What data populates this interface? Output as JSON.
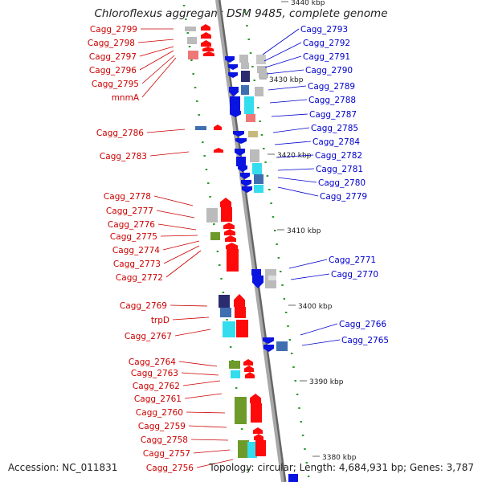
{
  "title": "Chloroflexus aggregans DSM 9485, complete genome",
  "accession": "Accession: NC_011831",
  "summary": "Topology: circular; Length: 4,684,931 bp; Genes: 3,787",
  "colors": {
    "forward": "#ff0000",
    "reverse": "#0000ff",
    "label_left": "#cc0000",
    "label_right": "#0000cc",
    "backbone": "#999999",
    "tick": "#2e9a2e"
  },
  "scale_labels": [
    "3440 kbp",
    "3430 kbp",
    "3420 kbp",
    "3410 kbp",
    "3400 kbp",
    "3390 kbp",
    "3380 kbp"
  ],
  "left_genes": [
    "Cagg_2799",
    "Cagg_2798",
    "Cagg_2797",
    "Cagg_2796",
    "Cagg_2795",
    "mnmA",
    "Cagg_2786",
    "Cagg_2783",
    "Cagg_2778",
    "Cagg_2777",
    "Cagg_2776",
    "Cagg_2775",
    "Cagg_2774",
    "Cagg_2773",
    "Cagg_2772",
    "Cagg_2769",
    "trpD",
    "Cagg_2767",
    "Cagg_2764",
    "Cagg_2763",
    "Cagg_2762",
    "Cagg_2761",
    "Cagg_2760",
    "Cagg_2759",
    "Cagg_2758",
    "Cagg_2757",
    "Cagg_2756"
  ],
  "right_genes": [
    "Cagg_2793",
    "Cagg_2792",
    "Cagg_2791",
    "Cagg_2790",
    "Cagg_2789",
    "Cagg_2788",
    "Cagg_2787",
    "Cagg_2785",
    "Cagg_2784",
    "Cagg_2782",
    "Cagg_2781",
    "Cagg_2780",
    "Cagg_2779",
    "Cagg_2771",
    "Cagg_2770",
    "Cagg_2766",
    "Cagg_2765"
  ]
}
